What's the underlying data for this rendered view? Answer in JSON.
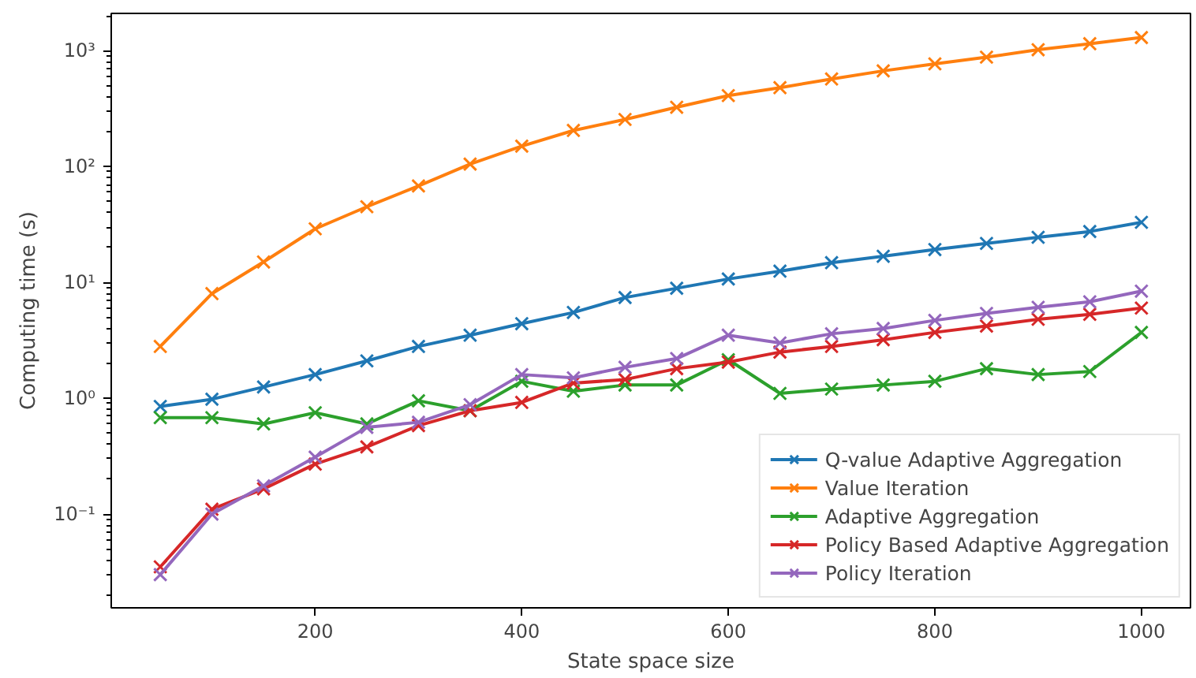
{
  "chart_data": {
    "type": "line",
    "xlabel": "State space size",
    "ylabel": "Computing time (s)",
    "x": [
      50,
      100,
      150,
      200,
      250,
      300,
      350,
      400,
      450,
      500,
      550,
      600,
      650,
      700,
      750,
      800,
      850,
      900,
      950,
      1000
    ],
    "series": [
      {
        "name": "Q-value Adaptive Aggregation",
        "color": "#1f77b4",
        "values": [
          0.85,
          0.98,
          1.25,
          1.6,
          2.1,
          2.8,
          3.5,
          4.4,
          5.5,
          7.4,
          8.9,
          10.7,
          12.5,
          14.8,
          16.8,
          19.2,
          21.7,
          24.5,
          27.5,
          33
        ]
      },
      {
        "name": "Value Iteration",
        "color": "#ff7f0e",
        "values": [
          2.8,
          8,
          15,
          29,
          45,
          68,
          105,
          150,
          205,
          255,
          325,
          410,
          480,
          570,
          670,
          770,
          880,
          1020,
          1150,
          1300
        ]
      },
      {
        "name": "Adaptive Aggregation",
        "color": "#2ca02c",
        "values": [
          0.68,
          0.68,
          0.6,
          0.75,
          0.6,
          0.95,
          0.78,
          1.4,
          1.15,
          1.3,
          1.3,
          2.15,
          1.1,
          1.2,
          1.3,
          1.4,
          1.8,
          1.6,
          1.7,
          3.7
        ]
      },
      {
        "name": "Policy Based Adaptive Aggregation",
        "color": "#d62728",
        "values": [
          0.035,
          0.11,
          0.165,
          0.27,
          0.38,
          0.58,
          0.78,
          0.92,
          1.35,
          1.45,
          1.8,
          2.05,
          2.5,
          2.8,
          3.2,
          3.7,
          4.2,
          4.8,
          5.3,
          6.0
        ]
      },
      {
        "name": "Policy Iteration",
        "color": "#9467bd",
        "values": [
          0.03,
          0.1,
          0.175,
          0.31,
          0.56,
          0.62,
          0.88,
          1.6,
          1.5,
          1.85,
          2.2,
          3.5,
          3.0,
          3.6,
          4.0,
          4.7,
          5.4,
          6.1,
          6.8,
          8.4
        ]
      }
    ],
    "xlim": [
      2.5,
      1047.5
    ],
    "ylim": [
      0.0155,
      2100
    ],
    "xticks": [
      200,
      400,
      600,
      800,
      1000
    ],
    "yticks": [
      {
        "value": 0.1,
        "label": "10⁻¹"
      },
      {
        "value": 1,
        "label": "10⁰"
      },
      {
        "value": 10,
        "label": "10¹"
      },
      {
        "value": 100,
        "label": "10²"
      },
      {
        "value": 1000,
        "label": "10³"
      }
    ],
    "log": "y",
    "grid": false,
    "legend": "bottom right",
    "marker": "cross",
    "line_style": "solid"
  }
}
